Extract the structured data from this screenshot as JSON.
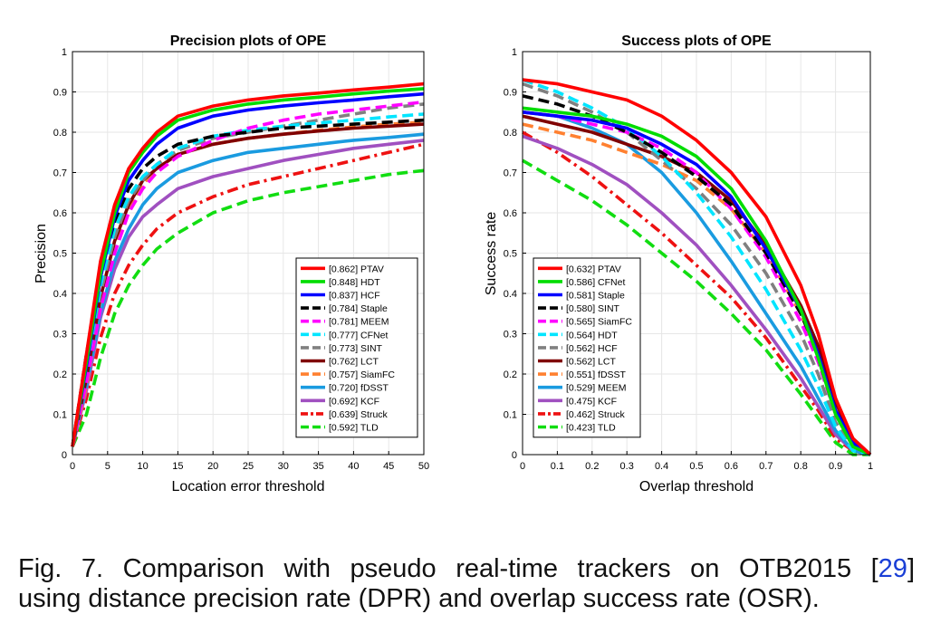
{
  "chart_data": [
    {
      "type": "line",
      "title": "Precision plots of OPE",
      "xlabel": "Location error threshold",
      "ylabel": "Precision",
      "xlim": [
        0,
        50
      ],
      "ylim": [
        0,
        1
      ],
      "xticks": [
        "0",
        "5",
        "10",
        "15",
        "20",
        "25",
        "30",
        "35",
        "40",
        "45",
        "50"
      ],
      "yticks": [
        "0",
        "0.1",
        "0.2",
        "0.3",
        "0.4",
        "0.5",
        "0.6",
        "0.7",
        "0.8",
        "0.9",
        "1"
      ],
      "grid": true,
      "legend_position": "bottom-right",
      "x": [
        0,
        2,
        4,
        6,
        8,
        10,
        12,
        15,
        20,
        25,
        30,
        35,
        40,
        45,
        50
      ],
      "series": [
        {
          "name": "PTAV",
          "score": "[0.862]",
          "color": "#ff0000",
          "dash": "solid",
          "values": [
            0.02,
            0.25,
            0.48,
            0.62,
            0.71,
            0.76,
            0.8,
            0.84,
            0.865,
            0.88,
            0.89,
            0.897,
            0.905,
            0.912,
            0.92
          ]
        },
        {
          "name": "HDT",
          "score": "[0.848]",
          "color": "#00dd00",
          "dash": "solid",
          "values": [
            0.02,
            0.23,
            0.45,
            0.6,
            0.7,
            0.75,
            0.79,
            0.83,
            0.855,
            0.87,
            0.88,
            0.887,
            0.895,
            0.902,
            0.908
          ]
        },
        {
          "name": "HCF",
          "score": "[0.837]",
          "color": "#0000ff",
          "dash": "solid",
          "values": [
            0.02,
            0.22,
            0.44,
            0.59,
            0.68,
            0.73,
            0.77,
            0.81,
            0.84,
            0.855,
            0.865,
            0.873,
            0.88,
            0.888,
            0.895
          ]
        },
        {
          "name": "Staple",
          "score": "[0.784]",
          "color": "#000000",
          "dash": "dash",
          "values": [
            0.02,
            0.25,
            0.45,
            0.58,
            0.66,
            0.71,
            0.74,
            0.77,
            0.79,
            0.8,
            0.81,
            0.815,
            0.82,
            0.825,
            0.83
          ]
        },
        {
          "name": "MEEM",
          "score": "[0.781]",
          "color": "#ff00ff",
          "dash": "dash",
          "values": [
            0.02,
            0.18,
            0.36,
            0.5,
            0.6,
            0.66,
            0.7,
            0.74,
            0.78,
            0.81,
            0.83,
            0.845,
            0.855,
            0.865,
            0.875
          ]
        },
        {
          "name": "CFNet",
          "score": "[0.777]",
          "color": "#00e5ff",
          "dash": "dash",
          "values": [
            0.02,
            0.21,
            0.42,
            0.56,
            0.64,
            0.69,
            0.72,
            0.76,
            0.79,
            0.805,
            0.815,
            0.823,
            0.83,
            0.838,
            0.845
          ]
        },
        {
          "name": "SINT",
          "score": "[0.773]",
          "color": "#808080",
          "dash": "dash",
          "values": [
            0.02,
            0.2,
            0.4,
            0.54,
            0.63,
            0.68,
            0.72,
            0.755,
            0.785,
            0.8,
            0.815,
            0.83,
            0.845,
            0.86,
            0.87
          ]
        },
        {
          "name": "LCT",
          "score": "[0.762]",
          "color": "#800000",
          "dash": "solid",
          "values": [
            0.02,
            0.19,
            0.39,
            0.53,
            0.62,
            0.68,
            0.71,
            0.745,
            0.77,
            0.785,
            0.795,
            0.803,
            0.81,
            0.815,
            0.82
          ]
        },
        {
          "name": "SiamFC",
          "score": "[0.757]",
          "color": "#ff8030",
          "dash": "dash",
          "values": [
            0.02,
            0.17,
            0.37,
            0.52,
            0.61,
            0.67,
            0.71,
            0.745,
            0.77,
            0.785,
            0.795,
            0.805,
            0.813,
            0.82,
            0.825
          ]
        },
        {
          "name": "fDSST",
          "score": "[0.720]",
          "color": "#1a9be0",
          "dash": "solid",
          "values": [
            0.02,
            0.17,
            0.35,
            0.48,
            0.56,
            0.62,
            0.66,
            0.7,
            0.73,
            0.75,
            0.76,
            0.77,
            0.78,
            0.787,
            0.795
          ]
        },
        {
          "name": "KCF",
          "score": "[0.692]",
          "color": "#a050c0",
          "dash": "solid",
          "values": [
            0.02,
            0.16,
            0.34,
            0.46,
            0.54,
            0.59,
            0.62,
            0.66,
            0.69,
            0.71,
            0.73,
            0.745,
            0.76,
            0.77,
            0.78
          ]
        },
        {
          "name": "Struck",
          "score": "[0.639]",
          "color": "#ee1111",
          "dash": "dashdot",
          "values": [
            0.02,
            0.14,
            0.29,
            0.4,
            0.47,
            0.52,
            0.56,
            0.6,
            0.64,
            0.67,
            0.69,
            0.71,
            0.73,
            0.75,
            0.77
          ]
        },
        {
          "name": "TLD",
          "score": "[0.592]",
          "color": "#11dd11",
          "dash": "dash",
          "values": [
            0.02,
            0.1,
            0.24,
            0.35,
            0.42,
            0.47,
            0.51,
            0.55,
            0.6,
            0.63,
            0.65,
            0.665,
            0.68,
            0.695,
            0.705
          ]
        }
      ]
    },
    {
      "type": "line",
      "title": "Success plots of OPE",
      "xlabel": "Overlap threshold",
      "ylabel": "Success rate",
      "xlim": [
        0,
        1
      ],
      "ylim": [
        0,
        1
      ],
      "xticks": [
        "0",
        "0.1",
        "0.2",
        "0.3",
        "0.4",
        "0.5",
        "0.6",
        "0.7",
        "0.8",
        "0.9",
        "1"
      ],
      "yticks": [
        "0",
        "0.1",
        "0.2",
        "0.3",
        "0.4",
        "0.5",
        "0.6",
        "0.7",
        "0.8",
        "0.9",
        "1"
      ],
      "grid": true,
      "legend_position": "bottom-left",
      "x": [
        0,
        0.1,
        0.2,
        0.3,
        0.4,
        0.5,
        0.6,
        0.7,
        0.8,
        0.85,
        0.9,
        0.95,
        1.0
      ],
      "series": [
        {
          "name": "PTAV",
          "score": "[0.632]",
          "color": "#ff0000",
          "dash": "solid",
          "values": [
            0.93,
            0.92,
            0.9,
            0.88,
            0.84,
            0.78,
            0.7,
            0.59,
            0.42,
            0.3,
            0.14,
            0.04,
            0.0
          ]
        },
        {
          "name": "CFNet",
          "score": "[0.586]",
          "color": "#00dd00",
          "dash": "solid",
          "values": [
            0.86,
            0.85,
            0.84,
            0.82,
            0.79,
            0.74,
            0.66,
            0.53,
            0.36,
            0.24,
            0.1,
            0.02,
            0.0
          ]
        },
        {
          "name": "Staple",
          "score": "[0.581]",
          "color": "#0000ff",
          "dash": "solid",
          "values": [
            0.85,
            0.84,
            0.83,
            0.81,
            0.77,
            0.72,
            0.64,
            0.51,
            0.36,
            0.25,
            0.11,
            0.03,
            0.0
          ]
        },
        {
          "name": "SINT",
          "score": "[0.580]",
          "color": "#000000",
          "dash": "dash",
          "values": [
            0.89,
            0.87,
            0.84,
            0.8,
            0.75,
            0.69,
            0.62,
            0.5,
            0.35,
            0.25,
            0.11,
            0.03,
            0.0
          ]
        },
        {
          "name": "SiamFC",
          "score": "[0.565]",
          "color": "#ff00ff",
          "dash": "dash",
          "values": [
            0.85,
            0.84,
            0.82,
            0.8,
            0.76,
            0.7,
            0.61,
            0.49,
            0.33,
            0.23,
            0.1,
            0.02,
            0.0
          ]
        },
        {
          "name": "HDT",
          "score": "[0.564]",
          "color": "#00e5ff",
          "dash": "dash",
          "values": [
            0.93,
            0.9,
            0.86,
            0.81,
            0.74,
            0.65,
            0.54,
            0.41,
            0.26,
            0.17,
            0.07,
            0.01,
            0.0
          ]
        },
        {
          "name": "HCF",
          "score": "[0.562]",
          "color": "#808080",
          "dash": "dash",
          "values": [
            0.92,
            0.89,
            0.85,
            0.8,
            0.73,
            0.66,
            0.57,
            0.45,
            0.3,
            0.2,
            0.08,
            0.02,
            0.0
          ]
        },
        {
          "name": "LCT",
          "score": "[0.562]",
          "color": "#800000",
          "dash": "solid",
          "values": [
            0.84,
            0.82,
            0.8,
            0.77,
            0.74,
            0.7,
            0.63,
            0.52,
            0.37,
            0.27,
            0.13,
            0.04,
            0.0
          ]
        },
        {
          "name": "fDSST",
          "score": "[0.551]",
          "color": "#ff8030",
          "dash": "dash",
          "values": [
            0.82,
            0.8,
            0.78,
            0.75,
            0.72,
            0.68,
            0.61,
            0.5,
            0.35,
            0.25,
            0.11,
            0.03,
            0.0
          ]
        },
        {
          "name": "MEEM",
          "score": "[0.529]",
          "color": "#1a9be0",
          "dash": "solid",
          "values": [
            0.85,
            0.84,
            0.81,
            0.77,
            0.7,
            0.6,
            0.48,
            0.35,
            0.22,
            0.14,
            0.06,
            0.01,
            0.0
          ]
        },
        {
          "name": "KCF",
          "score": "[0.475]",
          "color": "#a050c0",
          "dash": "solid",
          "values": [
            0.79,
            0.76,
            0.72,
            0.67,
            0.6,
            0.52,
            0.42,
            0.31,
            0.19,
            0.12,
            0.05,
            0.01,
            0.0
          ]
        },
        {
          "name": "Struck",
          "score": "[0.462]",
          "color": "#ee1111",
          "dash": "dashdot",
          "values": [
            0.8,
            0.75,
            0.69,
            0.62,
            0.55,
            0.47,
            0.39,
            0.29,
            0.17,
            0.11,
            0.04,
            0.01,
            0.0
          ]
        },
        {
          "name": "TLD",
          "score": "[0.423]",
          "color": "#11dd11",
          "dash": "dash",
          "values": [
            0.73,
            0.68,
            0.63,
            0.57,
            0.5,
            0.43,
            0.35,
            0.26,
            0.15,
            0.09,
            0.03,
            0.0,
            0.0
          ]
        }
      ]
    }
  ],
  "caption": {
    "prefix": "Fig. 7. Comparison with pseudo real-time trackers on OTB2015 [",
    "ref": "29",
    "suffix": "]",
    "line2": "using distance precision rate (DPR) and overlap success rate (OSR)."
  }
}
